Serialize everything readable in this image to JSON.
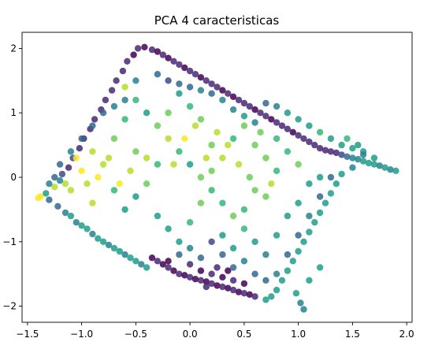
{
  "chart_data": {
    "type": "scatter",
    "title": "PCA 4 caracteristicas",
    "xlabel": "",
    "ylabel": "",
    "xlim": [
      -1.55,
      2.05
    ],
    "ylim": [
      -2.25,
      2.25
    ],
    "xticks": [
      -1.5,
      -1.0,
      -0.5,
      0.0,
      0.5,
      1.0,
      1.5,
      2.0
    ],
    "xtick_labels": [
      "−1.5",
      "−1.0",
      "−0.5",
      "0.0",
      "0.5",
      "1.0",
      "1.5",
      "2.0"
    ],
    "yticks": [
      -2,
      -1,
      0,
      1,
      2
    ],
    "ytick_labels": [
      "−2",
      "−1",
      "0",
      "1",
      "2"
    ],
    "grid": false,
    "legend": "none",
    "colormap": "viridis",
    "colors": {
      "viridis": [
        "#440154",
        "#482878",
        "#3e4989",
        "#31688e",
        "#26828e",
        "#1f9e89",
        "#35b779",
        "#6ece58",
        "#b5de2b",
        "#fde725"
      ]
    },
    "points": [
      [
        -1.4,
        -0.32,
        0.95
      ],
      [
        -1.38,
        -0.3,
        0.95
      ],
      [
        -1.33,
        -0.25,
        0.5
      ],
      [
        -1.3,
        -0.35,
        0.3
      ],
      [
        -1.25,
        -0.15,
        0.9
      ],
      [
        -1.22,
        -0.45,
        0.35
      ],
      [
        -1.2,
        -0.05,
        0.45
      ],
      [
        -1.18,
        0.05,
        0.2
      ],
      [
        -1.15,
        -0.55,
        0.4
      ],
      [
        -1.12,
        0.15,
        0.15
      ],
      [
        -1.1,
        -0.6,
        0.5
      ],
      [
        -1.08,
        0.3,
        0.2
      ],
      [
        -1.05,
        -0.7,
        0.45
      ],
      [
        -1.02,
        0.45,
        0.1
      ],
      [
        -1.0,
        -0.75,
        0.55
      ],
      [
        -0.98,
        0.6,
        0.12
      ],
      [
        -0.95,
        -0.8,
        0.5
      ],
      [
        -0.92,
        0.75,
        0.1
      ],
      [
        -0.9,
        -0.88,
        0.45
      ],
      [
        -0.88,
        0.9,
        0.15
      ],
      [
        -0.85,
        -0.95,
        0.55
      ],
      [
        -0.82,
        1.05,
        0.12
      ],
      [
        -0.8,
        -1.0,
        0.5
      ],
      [
        -0.78,
        1.2,
        0.1
      ],
      [
        -0.75,
        -1.05,
        0.45
      ],
      [
        -0.72,
        1.35,
        0.15
      ],
      [
        -0.7,
        -1.1,
        0.55
      ],
      [
        -0.68,
        1.5,
        0.1
      ],
      [
        -0.65,
        -1.15,
        0.5
      ],
      [
        -0.62,
        1.65,
        0.12
      ],
      [
        -0.6,
        -1.2,
        0.45
      ],
      [
        -0.58,
        1.8,
        0.1
      ],
      [
        -0.55,
        -1.25,
        0.55
      ],
      [
        -0.52,
        1.9,
        0.05
      ],
      [
        -0.5,
        -1.3,
        0.5
      ],
      [
        -0.48,
        2.0,
        0.08
      ],
      [
        -0.45,
        -1.35,
        0.45
      ],
      [
        -0.42,
        2.02,
        0.05
      ],
      [
        -0.4,
        -1.4,
        0.55
      ],
      [
        -0.35,
        1.98,
        0.1
      ],
      [
        -0.3,
        1.95,
        0.05
      ],
      [
        -0.25,
        1.9,
        0.12
      ],
      [
        -0.2,
        1.85,
        0.05
      ],
      [
        -0.15,
        1.8,
        0.1
      ],
      [
        -0.1,
        1.75,
        0.08
      ],
      [
        -0.05,
        1.7,
        0.05
      ],
      [
        0.0,
        1.65,
        0.12
      ],
      [
        0.05,
        1.6,
        0.08
      ],
      [
        0.1,
        1.55,
        0.05
      ],
      [
        0.15,
        1.5,
        0.1
      ],
      [
        0.2,
        1.45,
        0.06
      ],
      [
        0.25,
        1.4,
        0.1
      ],
      [
        0.3,
        1.35,
        0.05
      ],
      [
        0.35,
        1.3,
        0.08
      ],
      [
        0.4,
        1.25,
        0.05
      ],
      [
        0.45,
        1.2,
        0.12
      ],
      [
        0.5,
        1.15,
        0.06
      ],
      [
        0.55,
        1.1,
        0.1
      ],
      [
        0.6,
        1.05,
        0.05
      ],
      [
        0.65,
        1.0,
        0.08
      ],
      [
        0.7,
        0.95,
        0.1
      ],
      [
        0.75,
        0.9,
        0.05
      ],
      [
        0.8,
        0.85,
        0.12
      ],
      [
        0.85,
        0.8,
        0.06
      ],
      [
        0.9,
        0.75,
        0.1
      ],
      [
        0.95,
        0.7,
        0.05
      ],
      [
        1.0,
        0.65,
        0.08
      ],
      [
        1.05,
        0.6,
        0.12
      ],
      [
        1.1,
        0.55,
        0.06
      ],
      [
        1.15,
        0.5,
        0.1
      ],
      [
        1.2,
        0.45,
        0.08
      ],
      [
        1.25,
        0.42,
        0.12
      ],
      [
        1.3,
        0.4,
        0.1
      ],
      [
        1.35,
        0.38,
        0.15
      ],
      [
        1.4,
        0.35,
        0.2
      ],
      [
        1.45,
        0.32,
        0.3
      ],
      [
        1.5,
        0.3,
        0.4
      ],
      [
        1.55,
        0.28,
        0.45
      ],
      [
        1.6,
        0.25,
        0.5
      ],
      [
        1.65,
        0.22,
        0.55
      ],
      [
        1.7,
        0.2,
        0.5
      ],
      [
        1.75,
        0.18,
        0.45
      ],
      [
        1.8,
        0.15,
        0.5
      ],
      [
        1.85,
        0.12,
        0.45
      ],
      [
        1.9,
        0.1,
        0.5
      ],
      [
        1.55,
        0.5,
        0.6
      ],
      [
        1.6,
        0.4,
        0.5
      ],
      [
        1.7,
        0.3,
        0.55
      ],
      [
        1.45,
        0.6,
        0.65
      ],
      [
        1.5,
        0.15,
        0.45
      ],
      [
        1.4,
        0.05,
        0.5
      ],
      [
        1.35,
        -0.1,
        0.55
      ],
      [
        1.3,
        -0.25,
        0.6
      ],
      [
        1.25,
        -0.4,
        0.55
      ],
      [
        1.2,
        -0.55,
        0.6
      ],
      [
        1.15,
        -0.7,
        0.5
      ],
      [
        1.1,
        -0.85,
        0.55
      ],
      [
        1.05,
        -1.0,
        0.6
      ],
      [
        1.0,
        -1.15,
        0.5
      ],
      [
        0.95,
        -1.3,
        0.55
      ],
      [
        0.9,
        -1.45,
        0.6
      ],
      [
        0.85,
        -1.6,
        0.5
      ],
      [
        0.8,
        -1.75,
        0.55
      ],
      [
        0.75,
        -1.85,
        0.6
      ],
      [
        0.7,
        -1.9,
        0.5
      ],
      [
        1.02,
        -1.95,
        0.4
      ],
      [
        1.05,
        -2.05,
        0.45
      ],
      [
        0.98,
        -1.8,
        0.55
      ],
      [
        1.1,
        -1.6,
        0.5
      ],
      [
        1.2,
        -1.4,
        0.6
      ],
      [
        -0.35,
        -1.25,
        0.05
      ],
      [
        -0.3,
        -1.3,
        0.08
      ],
      [
        -0.25,
        -1.35,
        0.05
      ],
      [
        -0.2,
        -1.4,
        0.1
      ],
      [
        -0.15,
        -1.45,
        0.05
      ],
      [
        -0.1,
        -1.5,
        0.08
      ],
      [
        -0.05,
        -1.52,
        0.05
      ],
      [
        0.0,
        -1.55,
        0.1
      ],
      [
        0.05,
        -1.58,
        0.05
      ],
      [
        0.1,
        -1.6,
        0.08
      ],
      [
        0.15,
        -1.62,
        0.05
      ],
      [
        0.2,
        -1.65,
        0.1
      ],
      [
        0.25,
        -1.68,
        0.05
      ],
      [
        0.3,
        -1.7,
        0.08
      ],
      [
        0.35,
        -1.72,
        0.05
      ],
      [
        0.4,
        -1.75,
        0.1
      ],
      [
        0.45,
        -1.78,
        0.05
      ],
      [
        0.5,
        -1.8,
        0.08
      ],
      [
        0.55,
        -1.82,
        0.05
      ],
      [
        0.6,
        -1.85,
        0.1
      ],
      [
        0.1,
        -1.45,
        0.05
      ],
      [
        0.2,
        -1.5,
        0.08
      ],
      [
        0.3,
        -1.55,
        0.05
      ],
      [
        0.0,
        -1.35,
        0.1
      ],
      [
        -0.2,
        -1.3,
        0.05
      ],
      [
        0.4,
        -1.6,
        0.08
      ],
      [
        0.5,
        -1.65,
        0.05
      ],
      [
        0.25,
        -1.4,
        0.1
      ],
      [
        0.35,
        -1.45,
        0.05
      ],
      [
        0.15,
        -1.7,
        0.08
      ],
      [
        -0.6,
        1.4,
        0.85
      ],
      [
        -0.5,
        1.2,
        0.7
      ],
      [
        -0.4,
        1.0,
        0.6
      ],
      [
        -0.3,
        0.8,
        0.75
      ],
      [
        -0.2,
        0.6,
        0.85
      ],
      [
        -0.1,
        0.4,
        0.7
      ],
      [
        0.0,
        0.2,
        0.6
      ],
      [
        0.1,
        0.0,
        0.8
      ],
      [
        0.2,
        -0.2,
        0.7
      ],
      [
        0.3,
        -0.4,
        0.65
      ],
      [
        0.4,
        -0.6,
        0.8
      ],
      [
        0.5,
        -0.8,
        0.7
      ],
      [
        0.6,
        -1.0,
        0.6
      ],
      [
        0.7,
        -0.3,
        0.75
      ],
      [
        0.8,
        0.1,
        0.7
      ],
      [
        0.9,
        0.4,
        0.65
      ],
      [
        1.0,
        0.2,
        0.8
      ],
      [
        1.1,
        -0.1,
        0.6
      ],
      [
        1.2,
        0.0,
        0.55
      ],
      [
        0.6,
        0.5,
        0.8
      ],
      [
        0.5,
        0.8,
        0.75
      ],
      [
        0.4,
        0.6,
        0.7
      ],
      [
        0.3,
        0.3,
        0.85
      ],
      [
        0.2,
        0.5,
        0.8
      ],
      [
        0.1,
        0.9,
        0.75
      ],
      [
        0.0,
        1.1,
        0.7
      ],
      [
        -0.1,
        1.3,
        0.6
      ],
      [
        -0.2,
        1.0,
        0.8
      ],
      [
        -0.3,
        0.2,
        0.65
      ],
      [
        -0.4,
        -0.1,
        0.75
      ],
      [
        -0.5,
        -0.3,
        0.6
      ],
      [
        -0.6,
        -0.5,
        0.55
      ],
      [
        -0.7,
        -0.2,
        0.7
      ],
      [
        -0.8,
        0.2,
        0.9
      ],
      [
        -0.9,
        0.4,
        0.85
      ],
      [
        -0.7,
        0.6,
        0.8
      ],
      [
        -0.6,
        0.9,
        0.7
      ],
      [
        -0.5,
        0.4,
        0.75
      ],
      [
        -0.4,
        0.3,
        0.85
      ],
      [
        -0.3,
        -0.6,
        0.6
      ],
      [
        -0.2,
        -0.8,
        0.55
      ],
      [
        -0.1,
        -1.0,
        0.5
      ],
      [
        0.0,
        -0.7,
        0.65
      ],
      [
        0.1,
        -0.4,
        0.75
      ],
      [
        0.2,
        0.1,
        0.8
      ],
      [
        0.3,
        -0.9,
        0.6
      ],
      [
        0.4,
        -1.1,
        0.55
      ],
      [
        0.5,
        -0.5,
        0.7
      ],
      [
        0.6,
        -0.2,
        0.75
      ],
      [
        0.7,
        0.3,
        0.8
      ],
      [
        0.8,
        0.6,
        0.65
      ],
      [
        0.9,
        -0.6,
        0.55
      ],
      [
        1.0,
        -0.4,
        0.6
      ],
      [
        0.8,
        -0.9,
        0.5
      ],
      [
        0.7,
        -1.2,
        0.45
      ],
      [
        -1.0,
        0.1,
        0.95
      ],
      [
        -1.1,
        -0.2,
        0.9
      ],
      [
        -0.9,
        -0.4,
        0.85
      ],
      [
        -1.05,
        0.3,
        0.95
      ],
      [
        -0.95,
        -0.1,
        0.9
      ],
      [
        -0.85,
        0.0,
        0.95
      ],
      [
        -0.75,
        0.3,
        0.9
      ],
      [
        -1.15,
        -0.1,
        0.85
      ],
      [
        -0.65,
        -0.1,
        0.95
      ],
      [
        -0.55,
        0.1,
        0.9
      ],
      [
        1.4,
        0.5,
        0.55
      ],
      [
        1.5,
        0.45,
        0.5
      ],
      [
        1.6,
        0.35,
        0.45
      ],
      [
        1.3,
        0.6,
        0.6
      ],
      [
        1.2,
        0.7,
        0.65
      ],
      [
        1.1,
        0.8,
        0.55
      ],
      [
        1.0,
        0.9,
        0.6
      ],
      [
        0.9,
        1.0,
        0.5
      ],
      [
        0.8,
        1.1,
        0.45
      ],
      [
        0.7,
        1.15,
        0.35
      ],
      [
        -0.3,
        1.6,
        0.3
      ],
      [
        -0.2,
        1.5,
        0.25
      ],
      [
        -0.1,
        1.45,
        0.35
      ],
      [
        0.0,
        1.4,
        0.3
      ],
      [
        0.1,
        1.35,
        0.4
      ],
      [
        0.2,
        1.3,
        0.35
      ],
      [
        0.3,
        1.2,
        0.45
      ],
      [
        0.4,
        1.05,
        0.4
      ],
      [
        0.5,
        0.95,
        0.5
      ],
      [
        0.6,
        0.85,
        0.45
      ],
      [
        -0.8,
        1.0,
        0.35
      ],
      [
        -0.7,
        1.1,
        0.4
      ],
      [
        -0.9,
        0.8,
        0.3
      ],
      [
        -1.0,
        0.6,
        0.35
      ],
      [
        -1.1,
        0.4,
        0.4
      ],
      [
        -1.2,
        0.2,
        0.3
      ],
      [
        -1.25,
        0.0,
        0.35
      ],
      [
        -1.3,
        -0.1,
        0.4
      ],
      [
        -0.6,
        1.2,
        0.45
      ],
      [
        -0.5,
        1.5,
        0.4
      ],
      [
        0.2,
        -1.0,
        0.25
      ],
      [
        0.3,
        -1.2,
        0.3
      ],
      [
        0.1,
        -1.25,
        0.35
      ],
      [
        0.0,
        -1.1,
        0.4
      ],
      [
        -0.1,
        -1.2,
        0.3
      ],
      [
        0.4,
        -1.4,
        0.35
      ],
      [
        0.5,
        -1.3,
        0.4
      ],
      [
        0.6,
        -1.5,
        0.3
      ],
      [
        0.7,
        -1.6,
        0.35
      ],
      [
        0.8,
        -1.5,
        0.4
      ],
      [
        0.9,
        -1.2,
        0.3
      ],
      [
        1.0,
        -0.9,
        0.35
      ],
      [
        1.1,
        -0.6,
        0.4
      ],
      [
        1.2,
        -0.3,
        0.3
      ],
      [
        1.3,
        0.0,
        0.35
      ],
      [
        0.25,
        0.7,
        0.9
      ],
      [
        0.35,
        0.5,
        0.85
      ],
      [
        0.15,
        0.3,
        0.9
      ],
      [
        0.45,
        0.2,
        0.85
      ],
      [
        0.55,
        0.0,
        0.8
      ],
      [
        -0.05,
        0.6,
        0.95
      ],
      [
        0.05,
        0.8,
        0.9
      ],
      [
        -0.15,
        0.2,
        0.85
      ],
      [
        0.65,
        0.7,
        0.8
      ],
      [
        0.75,
        -0.1,
        0.85
      ]
    ]
  }
}
